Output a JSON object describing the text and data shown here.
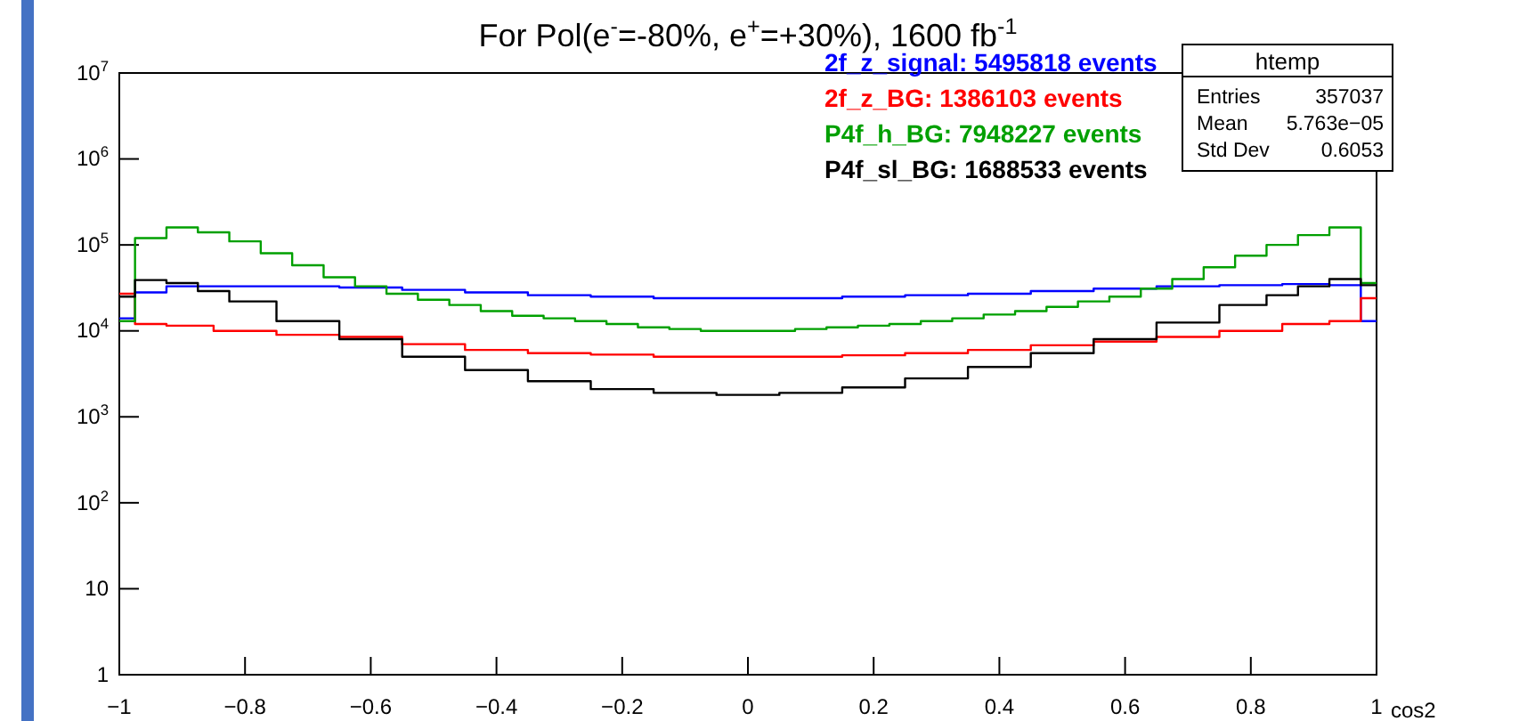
{
  "chart_data": {
    "type": "step",
    "title": "For Pol(e$^{-}$=-80%, e$^{+}$=+30%),  1600 fb$^{-1}$",
    "xlabel": "cos2",
    "log": "y",
    "legend": "top right",
    "grid": false,
    "xlim": [
      -1,
      1
    ],
    "xticks": [
      {
        "value": -1,
        "label": "−1"
      },
      {
        "value": -0.8,
        "label": "−0.8"
      },
      {
        "value": -0.6,
        "label": "−0.6"
      },
      {
        "value": -0.4,
        "label": "−0.4"
      },
      {
        "value": -0.2,
        "label": "−0.2"
      },
      0,
      0.2,
      0.4,
      0.6,
      0.8,
      1
    ],
    "ylim": [
      1,
      10000000
    ],
    "yticks": [
      1,
      10,
      {
        "value": 100,
        "label": "10$^{2}$"
      },
      {
        "value": 1000,
        "label": "10$^{3}$"
      },
      {
        "value": 10000,
        "label": "10$^{4}$"
      },
      {
        "value": 100000,
        "label": "10$^{5}$"
      },
      {
        "value": 1000000,
        "label": "10$^{6}$"
      },
      {
        "value": 10000000,
        "label": "10$^{7}$"
      }
    ],
    "annotations": [
      "htemp",
      "Entries",
      "357037",
      "Mean",
      "5.763e−05",
      "Std Dev",
      "0.6053"
    ],
    "series": [
      {
        "name": "2f_z_signal: 5495818 events",
        "color": "#0000ff",
        "x": [
          -1,
          -0.95,
          -0.9,
          -0.8,
          -0.7,
          -0.6,
          -0.5,
          -0.4,
          -0.3,
          -0.2,
          -0.1,
          0,
          0.1,
          0.2,
          0.3,
          0.4,
          0.5,
          0.6,
          0.7,
          0.8,
          0.9,
          0.95,
          1
        ],
        "values": [
          14000,
          28000,
          33000,
          33000,
          33000,
          32000,
          30000,
          28000,
          26000,
          25000,
          24000,
          24000,
          24000,
          25000,
          26000,
          27000,
          29000,
          31000,
          33000,
          34000,
          35000,
          34000,
          13000
        ]
      },
      {
        "name": "2f_z_BG: 1386103 events",
        "color": "#ff0000",
        "x": [
          -1,
          -0.95,
          -0.9,
          -0.8,
          -0.7,
          -0.6,
          -0.5,
          -0.4,
          -0.3,
          -0.2,
          -0.1,
          0,
          0.1,
          0.2,
          0.3,
          0.4,
          0.5,
          0.6,
          0.7,
          0.8,
          0.9,
          0.95,
          1
        ],
        "values": [
          27000,
          12000,
          11500,
          10000,
          9000,
          8500,
          7000,
          6000,
          5500,
          5300,
          5000,
          5000,
          5000,
          5200,
          5500,
          6000,
          6800,
          7500,
          8500,
          10000,
          12000,
          13000,
          24000
        ]
      },
      {
        "name": "P4f_h_BG: 7948227 events",
        "color": "#00a000",
        "x": [
          -1,
          -0.95,
          -0.9,
          -0.85,
          -0.8,
          -0.75,
          -0.7,
          -0.65,
          -0.6,
          -0.55,
          -0.5,
          -0.45,
          -0.4,
          -0.35,
          -0.3,
          -0.25,
          -0.2,
          -0.15,
          -0.1,
          -0.05,
          0,
          0.05,
          0.1,
          0.15,
          0.2,
          0.25,
          0.3,
          0.35,
          0.4,
          0.45,
          0.5,
          0.55,
          0.6,
          0.65,
          0.7,
          0.75,
          0.8,
          0.85,
          0.9,
          0.95,
          1
        ],
        "values": [
          13000,
          120000,
          160000,
          140000,
          110000,
          80000,
          58000,
          42000,
          33000,
          27000,
          23000,
          20000,
          17000,
          15000,
          14000,
          13000,
          12000,
          11000,
          10500,
          10000,
          10000,
          10000,
          10500,
          11000,
          11500,
          12000,
          13000,
          14000,
          15500,
          17000,
          19000,
          22000,
          25000,
          31000,
          40000,
          55000,
          75000,
          100000,
          130000,
          160000,
          36000
        ]
      },
      {
        "name": "P4f_sl_BG: 1688533 events",
        "color": "#000000",
        "x": [
          -1,
          -0.95,
          -0.9,
          -0.85,
          -0.8,
          -0.7,
          -0.6,
          -0.5,
          -0.4,
          -0.3,
          -0.2,
          -0.1,
          0,
          0.1,
          0.2,
          0.3,
          0.4,
          0.5,
          0.6,
          0.7,
          0.8,
          0.85,
          0.9,
          0.95,
          1
        ],
        "values": [
          25000,
          39000,
          36000,
          29000,
          22000,
          13000,
          8000,
          5000,
          3500,
          2600,
          2100,
          1900,
          1800,
          1900,
          2200,
          2800,
          3800,
          5500,
          8000,
          12500,
          20000,
          26000,
          33000,
          40000,
          34000
        ]
      }
    ]
  }
}
